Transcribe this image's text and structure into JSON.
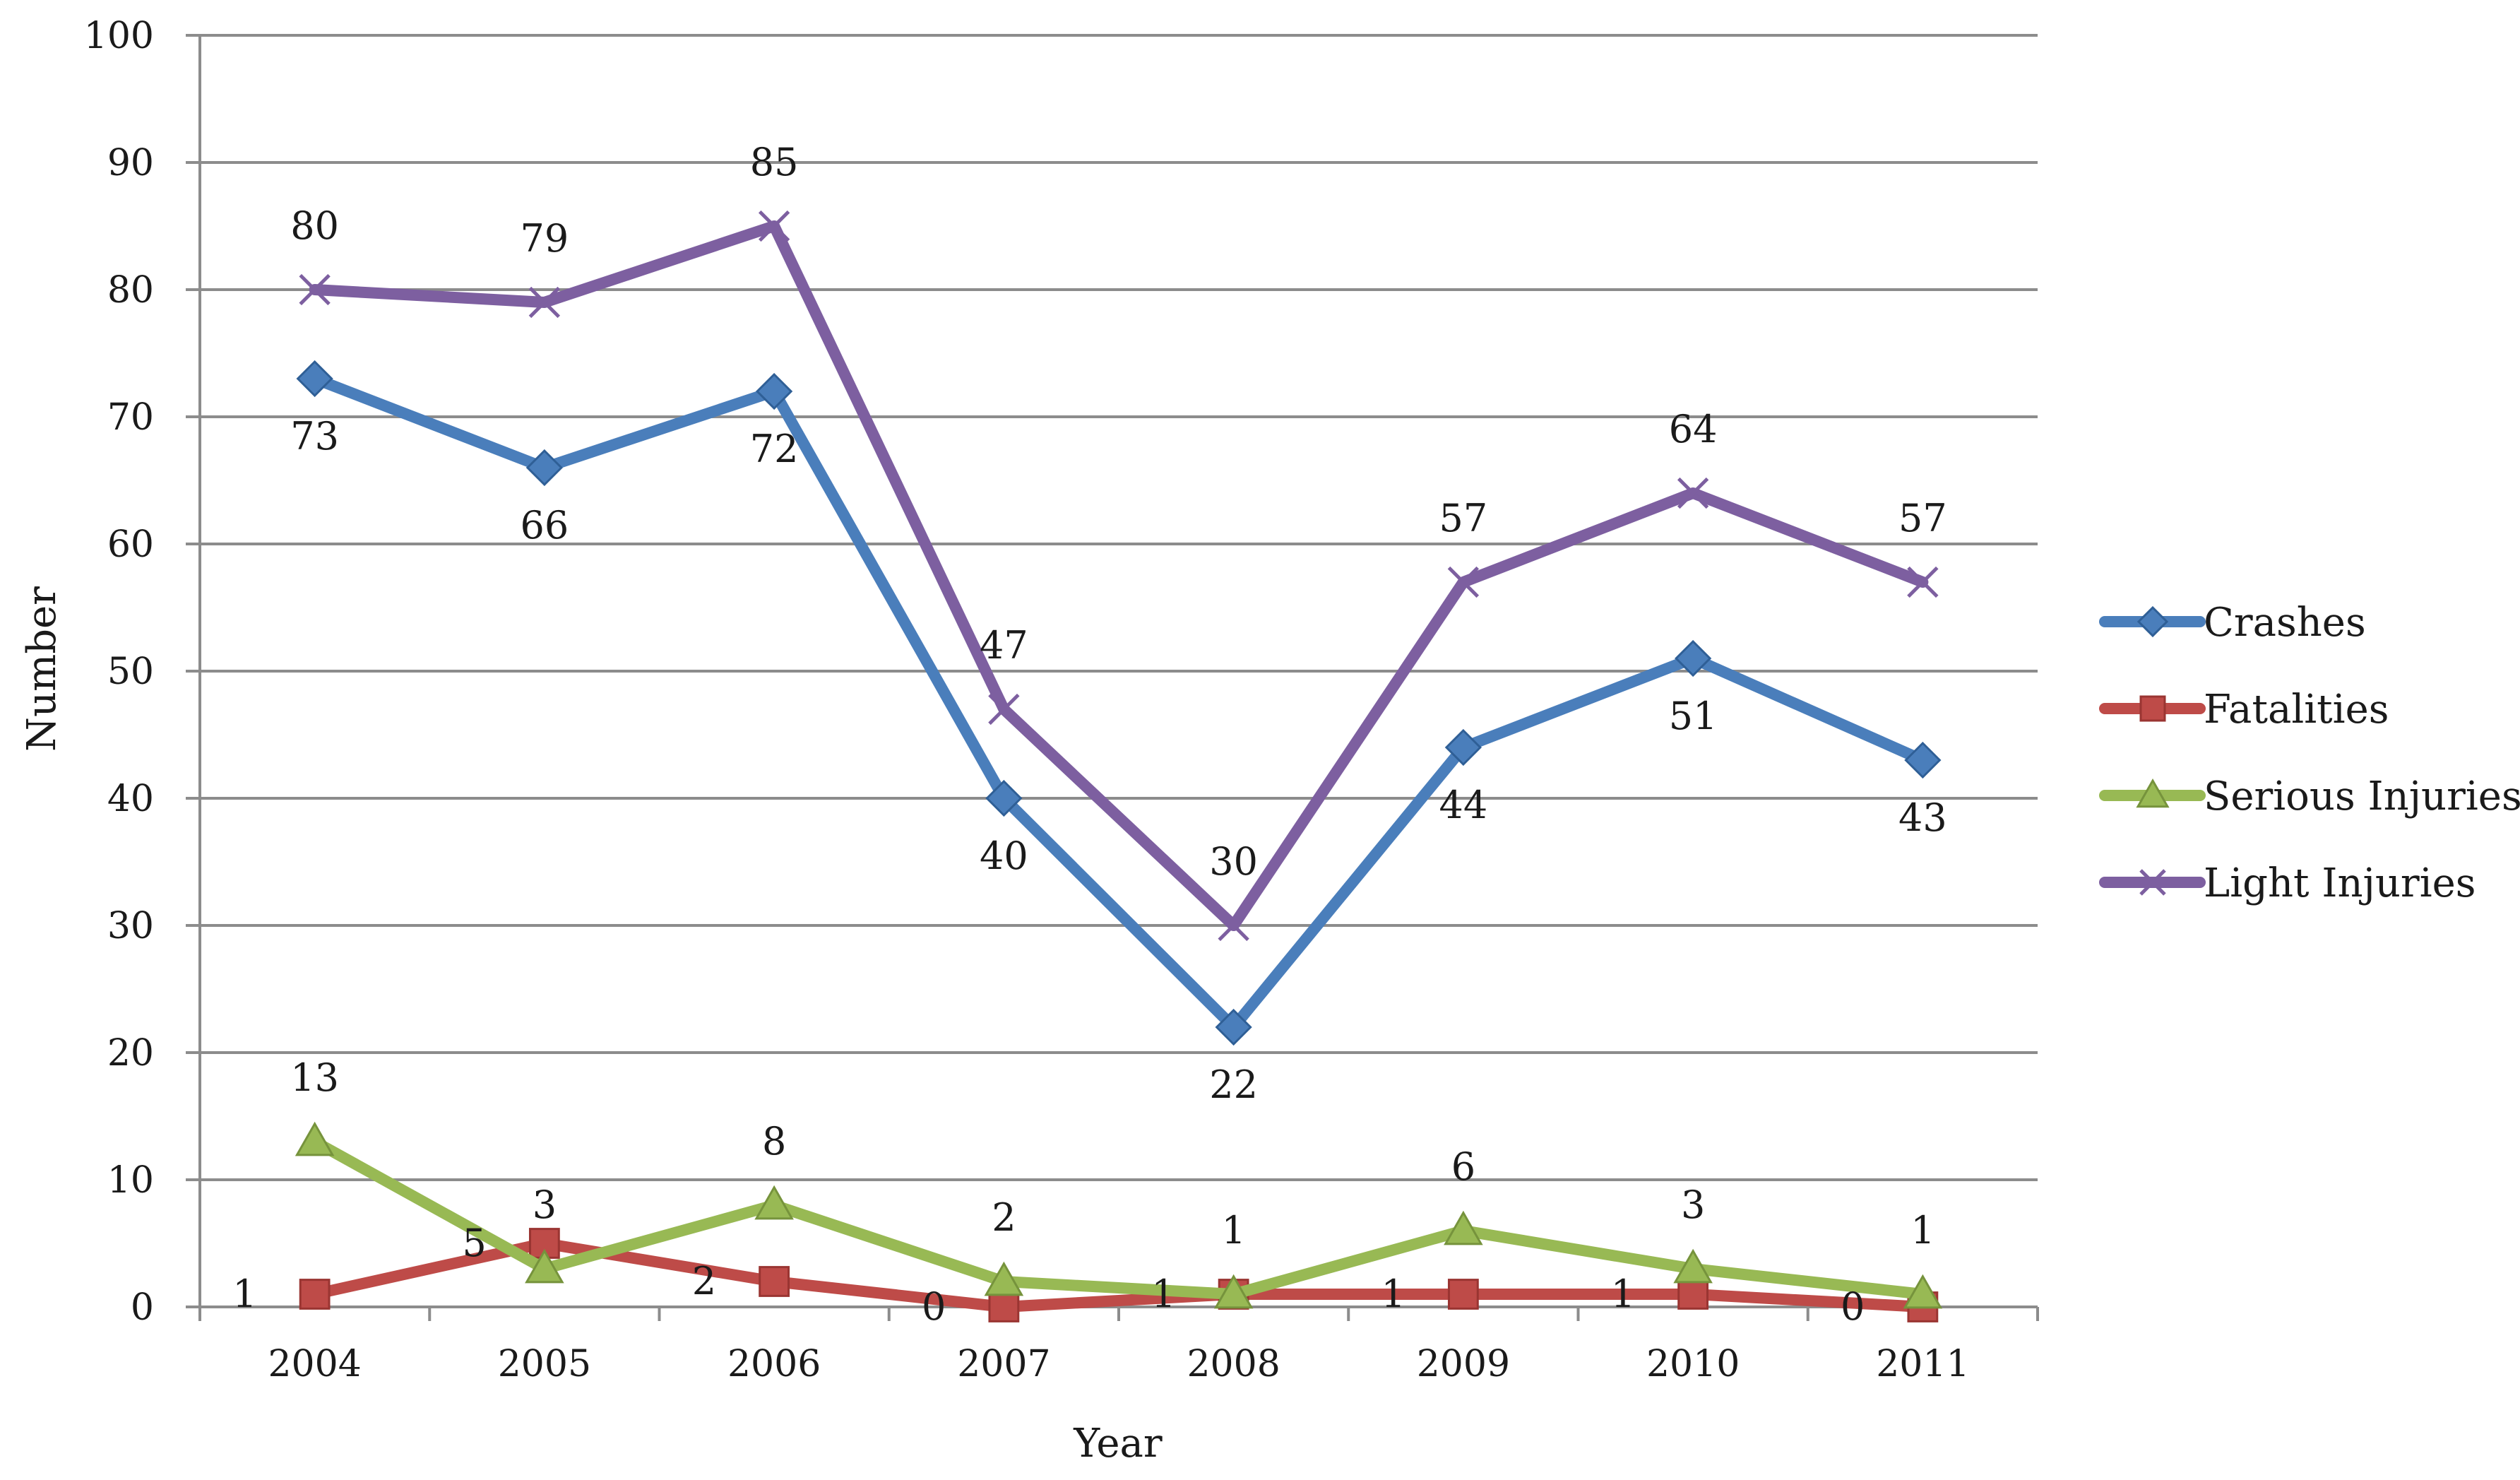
{
  "chart_data": {
    "type": "line",
    "title": "",
    "xlabel": "Year",
    "ylabel": "Number",
    "categories": [
      "2004",
      "2005",
      "2006",
      "2007",
      "2008",
      "2009",
      "2010",
      "2011"
    ],
    "ylim": [
      0,
      100
    ],
    "yticks": [
      0,
      10,
      20,
      30,
      40,
      50,
      60,
      70,
      80,
      90,
      100
    ],
    "grid": true,
    "legend_position": "right",
    "series": [
      {
        "name": "Crashes",
        "color": "#4a7ebb",
        "marker": "diamond",
        "values": [
          73,
          66,
          72,
          40,
          22,
          44,
          51,
          43
        ],
        "label_position": "below"
      },
      {
        "name": "Fatalities",
        "color": "#be4b48",
        "marker": "square",
        "values": [
          1,
          5,
          2,
          0,
          1,
          1,
          1,
          0
        ],
        "label_position": "left"
      },
      {
        "name": "Serious Injuries",
        "color": "#98b954",
        "marker": "triangle",
        "values": [
          13,
          3,
          8,
          2,
          1,
          6,
          3,
          1
        ],
        "label_position": "above"
      },
      {
        "name": "Light Injuries",
        "color": "#7d5fa0",
        "marker": "x",
        "values": [
          80,
          79,
          85,
          47,
          30,
          57,
          64,
          57
        ],
        "label_position": "above"
      }
    ]
  }
}
